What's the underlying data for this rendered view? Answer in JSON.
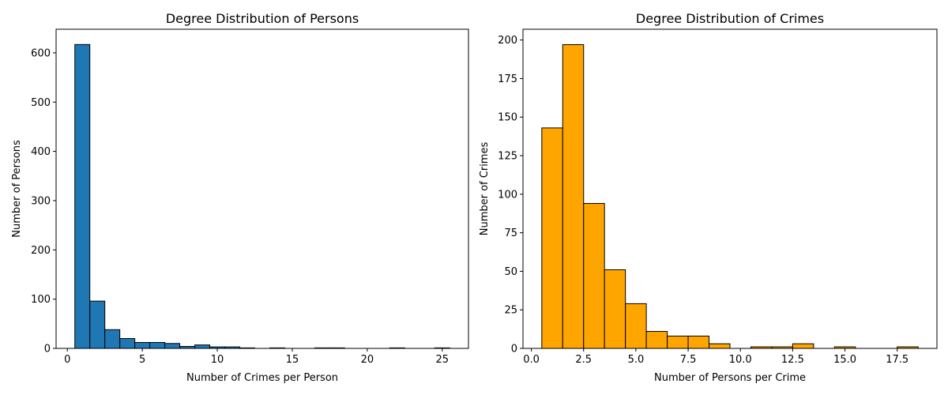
{
  "chart_data": [
    {
      "type": "bar",
      "title": "Degree Distribution of Persons",
      "xlabel": "Number of Crimes per Person",
      "ylabel": "Number of Persons",
      "color": "#1f77b4",
      "xlim": [
        -0.75,
        26.75
      ],
      "ylim": [
        0,
        648
      ],
      "xticks": [
        0,
        5,
        10,
        15,
        20,
        25
      ],
      "xtick_labels": [
        "0",
        "5",
        "10",
        "15",
        "20",
        "25"
      ],
      "yticks": [
        0,
        100,
        200,
        300,
        400,
        500,
        600
      ],
      "ytick_labels": [
        "0",
        "100",
        "200",
        "300",
        "400",
        "500",
        "600"
      ],
      "bins": [
        {
          "x0": 0.5,
          "x1": 1.5,
          "value": 617
        },
        {
          "x0": 1.5,
          "x1": 2.5,
          "value": 96
        },
        {
          "x0": 2.5,
          "x1": 3.5,
          "value": 38
        },
        {
          "x0": 3.5,
          "x1": 4.5,
          "value": 20
        },
        {
          "x0": 4.5,
          "x1": 5.5,
          "value": 12
        },
        {
          "x0": 5.5,
          "x1": 6.5,
          "value": 12
        },
        {
          "x0": 6.5,
          "x1": 7.5,
          "value": 10
        },
        {
          "x0": 7.5,
          "x1": 8.5,
          "value": 4
        },
        {
          "x0": 8.5,
          "x1": 9.5,
          "value": 7
        },
        {
          "x0": 9.5,
          "x1": 10.5,
          "value": 3
        },
        {
          "x0": 10.5,
          "x1": 11.5,
          "value": 3
        },
        {
          "x0": 11.5,
          "x1": 12.5,
          "value": 1
        },
        {
          "x0": 13.5,
          "x1": 14.5,
          "value": 1
        },
        {
          "x0": 16.5,
          "x1": 17.5,
          "value": 1
        },
        {
          "x0": 17.5,
          "x1": 18.5,
          "value": 1
        },
        {
          "x0": 21.5,
          "x1": 22.5,
          "value": 1
        },
        {
          "x0": 24.5,
          "x1": 25.5,
          "value": 1
        }
      ]
    },
    {
      "type": "bar",
      "title": "Degree Distribution of Crimes",
      "xlabel": "Number of Persons per Crime",
      "ylabel": "Number of Crimes",
      "color": "#ffa500",
      "xlim": [
        -0.4,
        19.4
      ],
      "ylim": [
        0,
        207
      ],
      "xticks": [
        0,
        2.5,
        5,
        7.5,
        10,
        12.5,
        15,
        17.5
      ],
      "xtick_labels": [
        "0.0",
        "2.5",
        "5.0",
        "7.5",
        "10.0",
        "12.5",
        "15.0",
        "17.5"
      ],
      "yticks": [
        0,
        25,
        50,
        75,
        100,
        125,
        150,
        175,
        200
      ],
      "ytick_labels": [
        "0",
        "25",
        "50",
        "75",
        "100",
        "125",
        "150",
        "175",
        "200"
      ],
      "bins": [
        {
          "x0": 0.5,
          "x1": 1.5,
          "value": 143
        },
        {
          "x0": 1.5,
          "x1": 2.5,
          "value": 197
        },
        {
          "x0": 2.5,
          "x1": 3.5,
          "value": 94
        },
        {
          "x0": 3.5,
          "x1": 4.5,
          "value": 51
        },
        {
          "x0": 4.5,
          "x1": 5.5,
          "value": 29
        },
        {
          "x0": 5.5,
          "x1": 6.5,
          "value": 11
        },
        {
          "x0": 6.5,
          "x1": 7.5,
          "value": 8
        },
        {
          "x0": 7.5,
          "x1": 8.5,
          "value": 8
        },
        {
          "x0": 8.5,
          "x1": 9.5,
          "value": 3
        },
        {
          "x0": 10.5,
          "x1": 11.5,
          "value": 1
        },
        {
          "x0": 11.5,
          "x1": 12.5,
          "value": 1
        },
        {
          "x0": 12.5,
          "x1": 13.5,
          "value": 3
        },
        {
          "x0": 14.5,
          "x1": 15.5,
          "value": 1
        },
        {
          "x0": 17.5,
          "x1": 18.5,
          "value": 1
        }
      ]
    }
  ]
}
